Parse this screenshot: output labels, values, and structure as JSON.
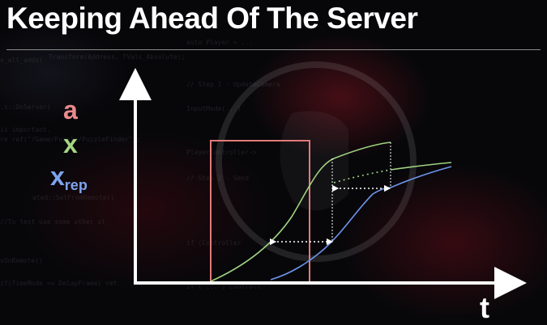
{
  "title": "Keeping Ahead Of The Server",
  "legend": {
    "a": "a",
    "x": "x",
    "x_rep_main": "x",
    "x_rep_sub": "rep"
  },
  "axis": {
    "x_label": "t"
  },
  "colors": {
    "a": "#e27a7a",
    "x": "#9fd27f",
    "x_rep": "#6d95ec",
    "axis": "#ffffff"
  }
}
